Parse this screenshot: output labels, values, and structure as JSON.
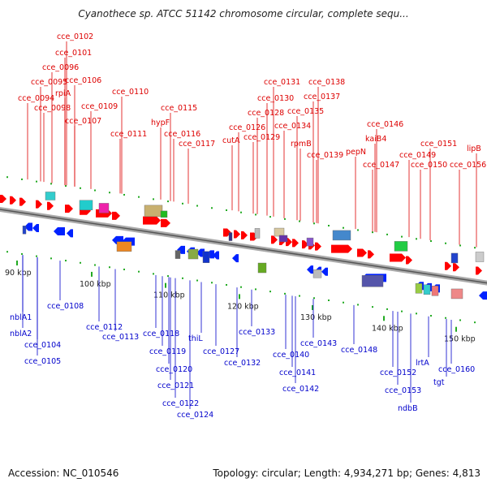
{
  "title": "Cyanothece sp. ATCC 51142 chromosome circular, complete sequ...",
  "footer": {
    "accession": "Accession: NC_010546",
    "summary": "Topology: circular; Length: 4,934,271 bp; Genes: 4,813"
  },
  "colors": {
    "forward_label": "#dd0000",
    "reverse_label": "#0000cc",
    "forward_gene": "#ff0000",
    "reverse_gene": "#0022ff",
    "backbone": "#777777",
    "tick": "#22aa22"
  },
  "ruler": [
    "90 kbp",
    "100 kbp",
    "110 kbp",
    "120 kbp",
    "130 kbp",
    "140 kbp",
    "150 kbp"
  ],
  "top_labels": [
    "cce_0102",
    "cce_0101",
    "cce_0096",
    "cce_0095",
    "cce_0094",
    "cce_0098",
    "rpiA",
    "cce_0106",
    "cce_0107",
    "cce_0109",
    "cce_0110",
    "cce_0111",
    "cce_0115",
    "hypF",
    "cce_0116",
    "cce_0117",
    "cce_0131",
    "cce_0138",
    "cce_0130",
    "cce_0137",
    "cce_0128",
    "cce_0135",
    "cce_0126",
    "cce_0134",
    "cutA",
    "cce_0129",
    "rpmB",
    "cce_0139",
    "cce_0146",
    "kaiB4",
    "pepN",
    "cce_0151",
    "cce_0149",
    "lipB",
    "cce_0147",
    "cce_0150",
    "cce_0156"
  ],
  "bottom_labels": [
    "nblA1",
    "nblA2",
    "cce_0108",
    "cce_0104",
    "cce_0105",
    "cce_0112",
    "cce_0113",
    "cce_0118",
    "cce_0119",
    "thiL",
    "cce_0120",
    "cce_0121",
    "cce_0122",
    "cce_0124",
    "cce_0127",
    "cce_0132",
    "cce_0133",
    "cce_0140",
    "cce_0143",
    "cce_0141",
    "cce_0142",
    "cce_0148",
    "cce_0152",
    "cce_0153",
    "ndbB",
    "lrtA",
    "tgt",
    "cce_0160"
  ]
}
